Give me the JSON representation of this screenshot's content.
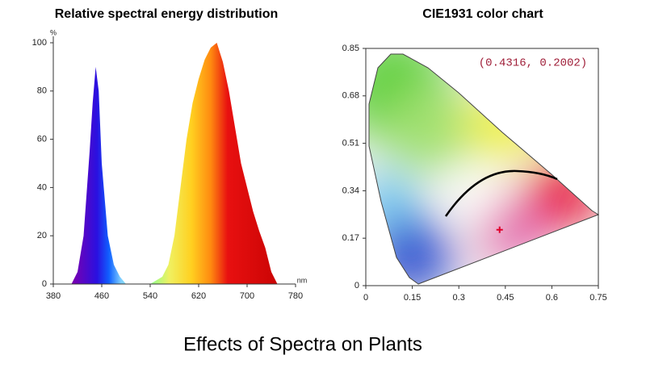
{
  "chart_data": [
    {
      "type": "area",
      "title": "Relative spectral energy distribution",
      "xlabel": "nm",
      "ylabel": "%",
      "x": [
        380,
        410,
        420,
        430,
        440,
        445,
        450,
        455,
        460,
        470,
        480,
        490,
        500,
        540,
        560,
        570,
        580,
        590,
        600,
        610,
        620,
        630,
        640,
        650,
        660,
        670,
        680,
        690,
        700,
        710,
        720,
        730,
        740,
        750,
        780
      ],
      "values": [
        0,
        0,
        5,
        20,
        55,
        75,
        90,
        80,
        50,
        20,
        8,
        3,
        0,
        0,
        3,
        8,
        20,
        40,
        60,
        75,
        85,
        93,
        98,
        100,
        92,
        80,
        65,
        50,
        40,
        30,
        22,
        15,
        5,
        0,
        0
      ],
      "xlim": [
        380,
        780
      ],
      "xticks": [
        380,
        460,
        540,
        620,
        700,
        780
      ],
      "ylim": [
        0,
        100
      ],
      "yticks": [
        0,
        20,
        40,
        60,
        80,
        100
      ]
    },
    {
      "type": "scatter",
      "title": "CIE1931 color chart",
      "annotation": "(0.4316, 0.2002)",
      "color": "#e0002a",
      "x": [
        0.4316
      ],
      "values": [
        0.2002
      ],
      "xlim": [
        0,
        0.75
      ],
      "xticks": [
        0,
        0.15,
        0.3,
        0.45,
        0.6,
        0.75
      ],
      "ylim": [
        0,
        0.85
      ],
      "yticks": [
        0,
        0.17,
        0.34,
        0.51,
        0.68,
        0.85
      ]
    }
  ],
  "footer": "Effects of Spectra on Plants"
}
